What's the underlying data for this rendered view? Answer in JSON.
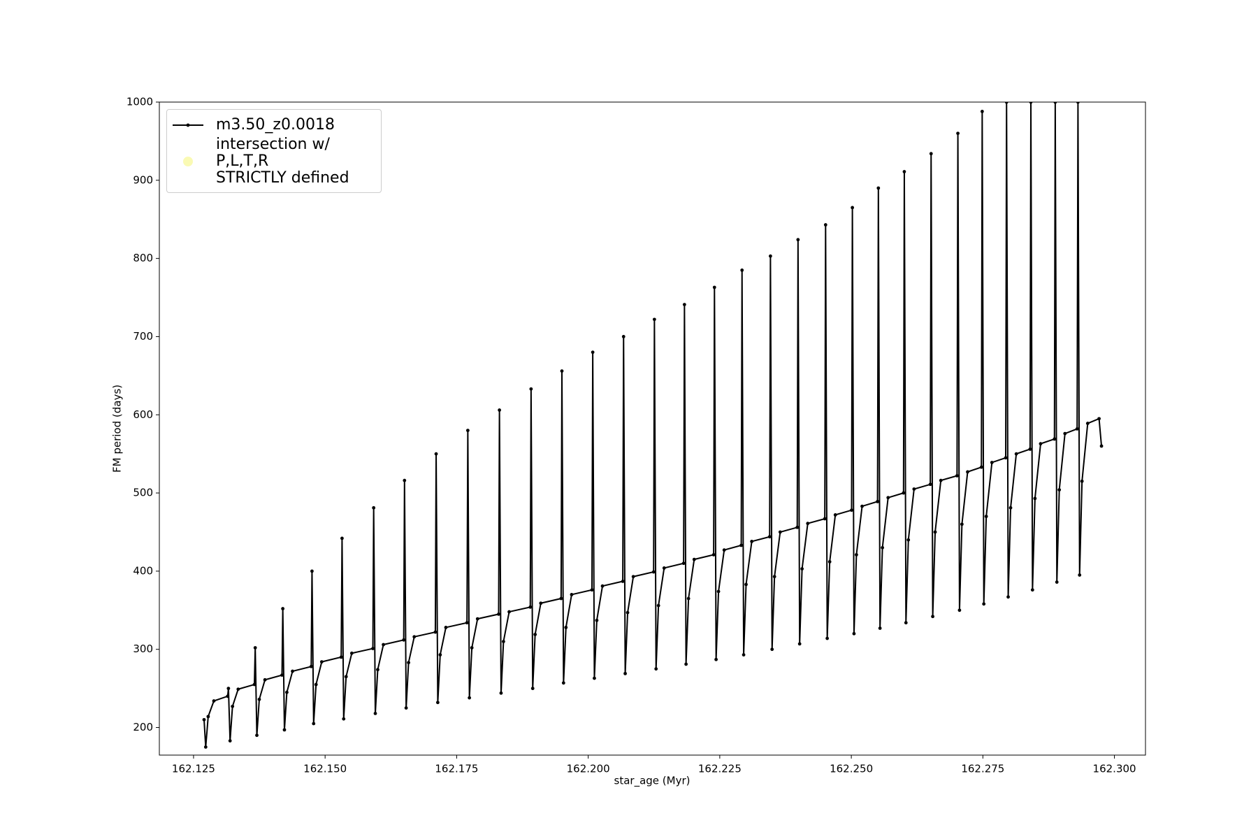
{
  "chart_data": {
    "type": "line",
    "xlabel": "star_age (Myr)",
    "ylabel": "FM period (days)",
    "xlim": [
      162.1185,
      162.3059
    ],
    "ylim": [
      164.7,
      1000
    ],
    "xticks": [
      162.125,
      {
        "value": 162.15,
        "label": "162.150"
      },
      162.175,
      {
        "value": 162.2,
        "label": "162.200"
      },
      162.225,
      {
        "value": 162.25,
        "label": "162.250"
      },
      162.275,
      {
        "value": 162.3,
        "label": "162.300"
      }
    ],
    "yticks": [
      200,
      300,
      400,
      500,
      600,
      700,
      800,
      900,
      1000
    ],
    "legend": "upper left",
    "series": [
      {
        "name": "m3.50_z0.0018",
        "color": "#000000",
        "x": [
          162.127,
          162.12731,
          162.12778,
          162.12886,
          162.13148,
          162.13163,
          162.13194,
          162.1324,
          162.13348,
          162.13656,
          162.13672,
          162.13703,
          162.13749,
          162.13857,
          162.14181,
          162.14196,
          162.14227,
          162.14273,
          162.14381,
          162.14736,
          162.14751,
          162.14782,
          162.14828,
          162.14936,
          162.15306,
          162.15322,
          162.15353,
          162.15399,
          162.15507,
          162.15908,
          162.15923,
          162.15954,
          162.16,
          162.16108,
          162.16494,
          162.16509,
          162.1654,
          162.16586,
          162.16694,
          162.17095,
          162.1711,
          162.17141,
          162.17187,
          162.17295,
          162.17696,
          162.17712,
          162.17742,
          162.17789,
          162.17897,
          162.18298,
          162.18313,
          162.18344,
          162.1839,
          162.18498,
          162.18899,
          162.18914,
          162.18945,
          162.18991,
          162.19099,
          162.19485,
          162.195,
          162.19531,
          162.19577,
          162.19685,
          162.20071,
          162.20086,
          162.20117,
          162.20163,
          162.20271,
          162.20657,
          162.20672,
          162.20703,
          162.20749,
          162.20857,
          162.21243,
          162.21258,
          162.21289,
          162.21335,
          162.21443,
          162.21813,
          162.21829,
          162.21859,
          162.21906,
          162.22014,
          162.22384,
          162.22399,
          162.2243,
          162.22476,
          162.22584,
          162.22908,
          162.22923,
          162.22954,
          162.23,
          162.23108,
          162.23448,
          162.23463,
          162.23494,
          162.2354,
          162.23648,
          162.23972,
          162.23987,
          162.24018,
          162.24064,
          162.24172,
          162.24496,
          162.24511,
          162.24542,
          162.24589,
          162.24696,
          162.25005,
          162.2502,
          162.25051,
          162.25097,
          162.25205,
          162.25498,
          162.25514,
          162.25545,
          162.25591,
          162.25699,
          162.25992,
          162.26007,
          162.26038,
          162.26084,
          162.26192,
          162.26501,
          162.26516,
          162.26547,
          162.26593,
          162.26701,
          162.27009,
          162.27025,
          162.27056,
          162.27102,
          162.2721,
          162.27472,
          162.27487,
          162.27518,
          162.27564,
          162.27672,
          162.27934,
          162.2795,
          162.27981,
          162.28027,
          162.28135,
          162.28397,
          162.28412,
          162.28443,
          162.2849,
          162.28597,
          162.2886,
          162.28875,
          162.28906,
          162.28952,
          162.2906,
          162.29291,
          162.29307,
          162.29338,
          162.29384,
          162.29492,
          162.29708,
          162.29754
        ],
        "values": [
          210,
          175,
          214,
          234,
          240,
          250,
          183,
          227,
          249,
          255,
          302,
          190,
          236,
          261,
          267,
          352,
          197,
          245,
          272,
          278,
          400,
          205,
          255,
          284,
          290,
          442,
          211,
          265,
          295,
          301,
          481,
          218,
          274,
          306,
          312,
          516,
          225,
          283,
          316,
          322,
          550,
          232,
          293,
          328,
          334,
          580,
          238,
          302,
          339,
          345,
          606,
          244,
          310,
          348,
          354,
          633,
          250,
          319,
          359,
          365,
          656,
          257,
          328,
          370,
          376,
          680,
          263,
          337,
          381,
          387,
          700,
          269,
          347,
          393,
          399,
          722,
          275,
          356,
          404,
          410,
          741,
          281,
          365,
          415,
          421,
          763,
          287,
          374,
          427,
          433,
          785,
          293,
          383,
          438,
          444,
          803,
          300,
          393,
          450,
          456,
          824,
          307,
          403,
          461,
          467,
          843,
          314,
          412,
          472,
          478,
          865,
          320,
          421,
          483,
          489,
          890,
          327,
          430,
          494,
          500,
          911,
          334,
          440,
          505,
          511,
          934,
          342,
          450,
          516,
          522,
          960,
          350,
          460,
          527,
          533,
          988,
          358,
          470,
          539,
          545,
          1000,
          367,
          481,
          550,
          556,
          1000,
          376,
          493,
          563,
          569,
          1000,
          386,
          504,
          576,
          582,
          1000,
          395,
          515,
          589,
          595,
          560
        ]
      },
      {
        "name": "intersection w/ P,L,T,R\nSTRICTLY defined",
        "color": "#fafab4",
        "x": [],
        "values": []
      }
    ]
  }
}
